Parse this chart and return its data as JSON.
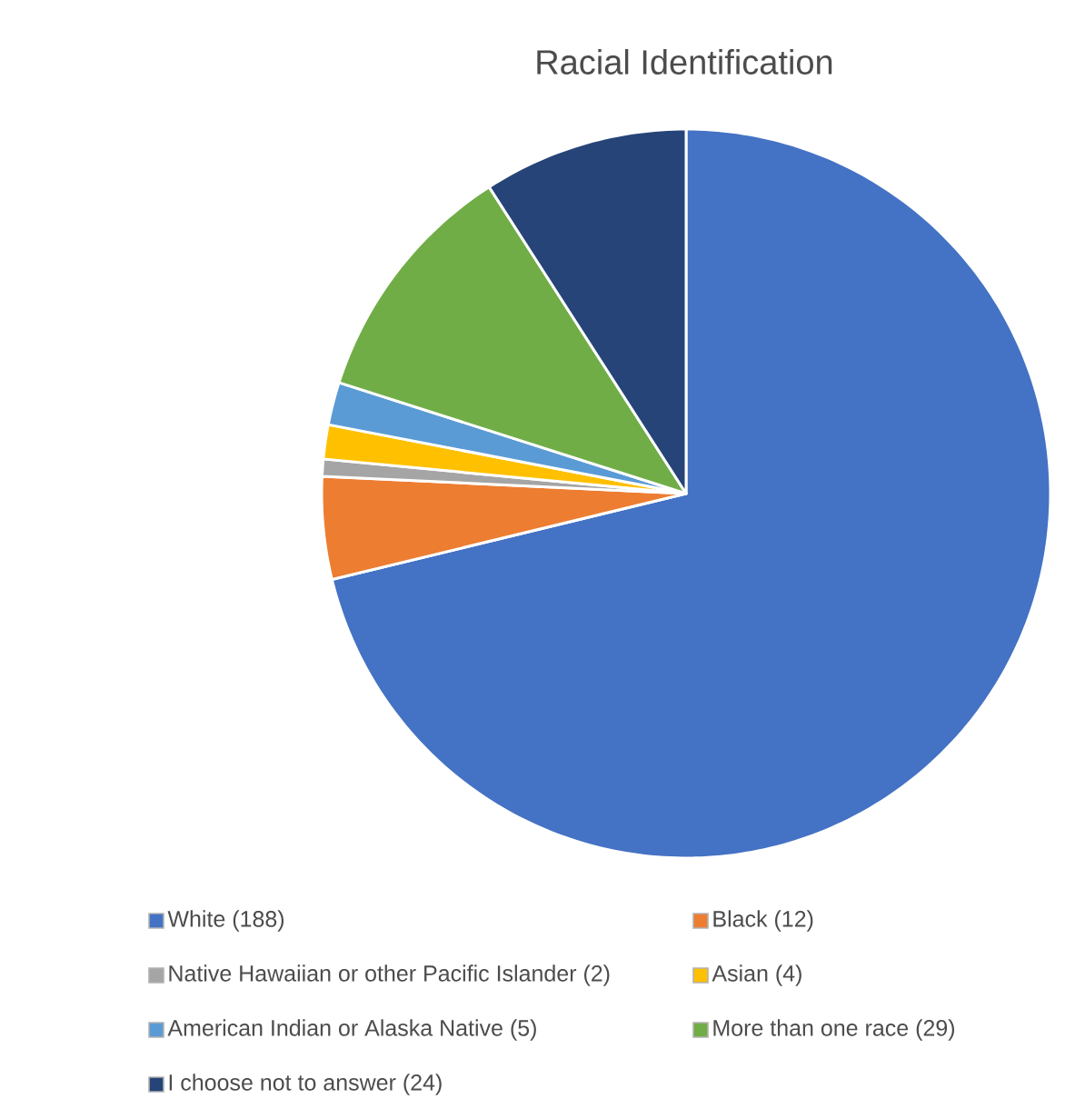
{
  "chart_data": {
    "type": "pie",
    "title": "Racial Identification",
    "categories": [
      "White (188)",
      "Black (12)",
      "Native Hawaiian or other Pacific Islander (2)",
      "Asian (4)",
      "American Indian or Alaska Native (5)",
      "More than one race (29)",
      "I choose not to answer (24)"
    ],
    "values": [
      188,
      12,
      2,
      4,
      5,
      29,
      24
    ],
    "colors": [
      "#4472c4",
      "#ed7d31",
      "#a5a5a5",
      "#ffc000",
      "#5b9bd5",
      "#70ad47",
      "#264478"
    ],
    "legend": "bottom"
  }
}
